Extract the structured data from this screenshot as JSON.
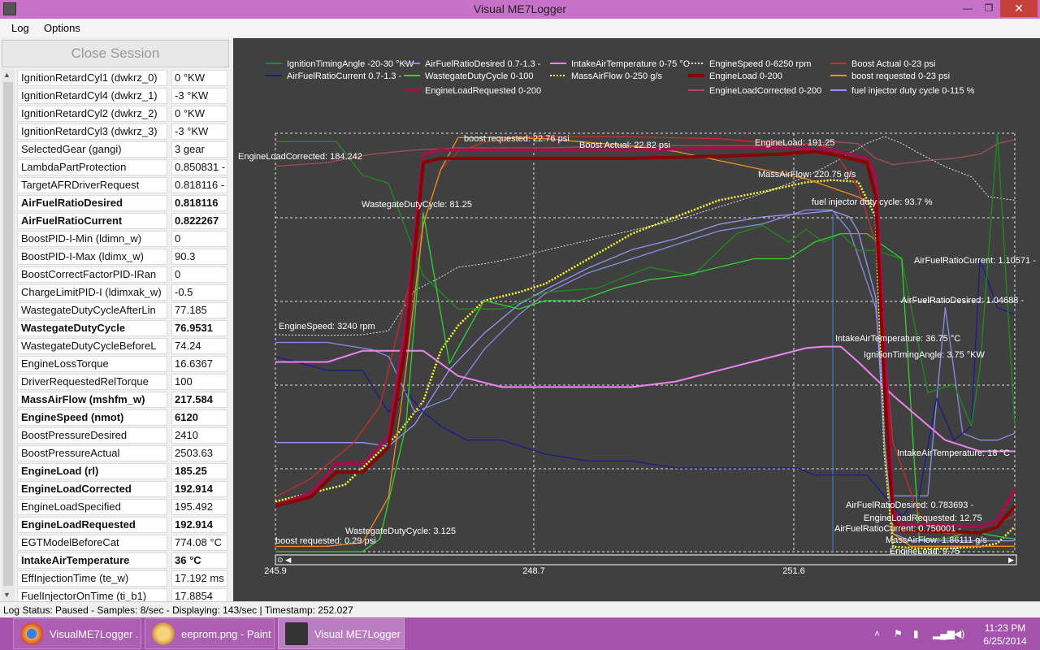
{
  "window": {
    "title": "Visual ME7Logger",
    "min": "—",
    "max": "❐",
    "close": "✕"
  },
  "menu": [
    "Log",
    "Options"
  ],
  "left_panel": {
    "close_session_label": "Close Session",
    "rows": [
      {
        "name": "IgnitionRetardCyl1 (dwkrz_0)",
        "value": "0 °KW",
        "bold": false
      },
      {
        "name": "IgnitionRetardCyl4 (dwkrz_1)",
        "value": "-3 °KW",
        "bold": false
      },
      {
        "name": "IgnitionRetardCyl2 (dwkrz_2)",
        "value": "0 °KW",
        "bold": false
      },
      {
        "name": "IgnitionRetardCyl3 (dwkrz_3)",
        "value": "-3 °KW",
        "bold": false
      },
      {
        "name": "SelectedGear (gangi)",
        "value": "3 gear",
        "bold": false
      },
      {
        "name": "LambdaPartProtection",
        "value": "0.850831 -",
        "bold": false
      },
      {
        "name": "TargetAFRDriverRequest",
        "value": "0.818116 -",
        "bold": false
      },
      {
        "name": "AirFuelRatioDesired",
        "value": "0.818116",
        "bold": true
      },
      {
        "name": "AirFuelRatioCurrent",
        "value": "0.822267",
        "bold": true
      },
      {
        "name": "BoostPID-I-Min (ldimn_w)",
        "value": "0",
        "bold": false
      },
      {
        "name": "BoostPID-I-Max (ldimx_w)",
        "value": "90.3",
        "bold": false
      },
      {
        "name": "BoostCorrectFactorPID-IRan",
        "value": "0",
        "bold": false
      },
      {
        "name": "ChargeLimitPID-I (ldimxak_w)",
        "value": "-0.5",
        "bold": false
      },
      {
        "name": "WastegateDutyCycleAfterLin",
        "value": "77.185",
        "bold": false
      },
      {
        "name": "WastegateDutyCycle",
        "value": "76.9531",
        "bold": true
      },
      {
        "name": "WastegateDutyCycleBeforeL",
        "value": "74.24",
        "bold": false
      },
      {
        "name": "EngineLossTorque",
        "value": "16.6367",
        "bold": false
      },
      {
        "name": "DriverRequestedRelTorque",
        "value": "100",
        "bold": false
      },
      {
        "name": "MassAirFlow (mshfm_w)",
        "value": "217.584",
        "bold": true
      },
      {
        "name": "EngineSpeed (nmot)",
        "value": "6120",
        "bold": true
      },
      {
        "name": "BoostPressureDesired",
        "value": "2410",
        "bold": false
      },
      {
        "name": "BoostPressureActual",
        "value": "2503.63",
        "bold": false
      },
      {
        "name": "EngineLoad (rl)",
        "value": "185.25",
        "bold": true
      },
      {
        "name": "EngineLoadCorrected",
        "value": "192.914",
        "bold": true
      },
      {
        "name": "EngineLoadSpecified",
        "value": "195.492",
        "bold": false
      },
      {
        "name": "EngineLoadRequested",
        "value": "192.914",
        "bold": true
      },
      {
        "name": "EGTModelBeforeCat",
        "value": "774.08 °C",
        "bold": false
      },
      {
        "name": "IntakeAirTemperature",
        "value": "36 °C",
        "bold": true
      },
      {
        "name": "EffInjectionTime (te_w)",
        "value": "17.192 ms",
        "bold": false
      },
      {
        "name": "FuelInjectorOnTime (ti_b1)",
        "value": "17.8854",
        "bold": false
      }
    ]
  },
  "legend": [
    {
      "label": "IgnitionTimingAngle -20-30 °KW",
      "color": "#1e8c1e",
      "style": "solid"
    },
    {
      "label": "AirFuelRatioCurrent 0.7-1.3 -",
      "color": "#1a1a8c",
      "style": "solid"
    },
    {
      "label": "AirFuelRatioDesired 0.7-1.3 -",
      "color": "#8c8ce6",
      "style": "solid"
    },
    {
      "label": "WastegateDutyCycle 0-100",
      "color": "#32d232",
      "style": "solid"
    },
    {
      "label": "EngineLoadRequested 0-200",
      "color": "#a0104a",
      "style": "thick"
    },
    {
      "label": "IntakeAirTemperature 0-75 °C",
      "color": "#ee82ee",
      "style": "solid"
    },
    {
      "label": "MassAirFlow 0-250 g/s",
      "color": "#ffff32",
      "style": "dotted"
    },
    {
      "label": "EngineSpeed 0-6250 rpm",
      "color": "#e6e6e6",
      "style": "dotted"
    },
    {
      "label": "EngineLoad 0-200",
      "color": "#8b0000",
      "style": "thick"
    },
    {
      "label": "EngineLoadCorrected 0-200",
      "color": "#a05050",
      "style": "solid"
    },
    {
      "label": "Boost Actual 0-23 psi",
      "color": "#d22828",
      "style": "solid"
    },
    {
      "label": "boost requested 0-23 psi",
      "color": "#f08c1e",
      "style": "solid"
    },
    {
      "label": "fuel injector duty cycle 0-115 %",
      "color": "#9696f0",
      "style": "solid"
    }
  ],
  "chart_data": {
    "type": "line",
    "x_ticks": [
      "245.9",
      "248.7",
      "251.6"
    ],
    "xlim": [
      245.9,
      254.4
    ],
    "grid": true,
    "series": [
      {
        "name": "IgnitionTimingAngle",
        "color": "#1e8c1e",
        "x": [
          245.9,
          246.6,
          246.9,
          247.2,
          247.6,
          248.0,
          248.5,
          249.0,
          249.6,
          250.2,
          250.7,
          251.2,
          251.5,
          251.8,
          252.0,
          252.2,
          252.4,
          252.6,
          252.8,
          253.1,
          253.4,
          253.7,
          253.9,
          254.0,
          254.2,
          254.4
        ],
        "y": [
          29,
          29,
          25,
          24,
          13,
          9,
          9,
          11,
          11.5,
          14,
          13,
          18,
          19,
          17,
          18.5,
          17,
          18,
          16,
          16,
          15,
          -1,
          0,
          -5,
          2,
          30,
          -5
        ]
      },
      {
        "name": "AirFuelRatioCurrent",
        "color": "#1a1a8c",
        "x": [
          245.9,
          246.5,
          246.9,
          247.2,
          247.4,
          247.6,
          247.8,
          248.1,
          248.5,
          249.0,
          249.5,
          250.0,
          250.5,
          251.0,
          251.5,
          251.9,
          252.1,
          252.3,
          252.5,
          252.7,
          252.9,
          253.1,
          253.3,
          253.5,
          253.7,
          253.9,
          254.0,
          254.2,
          254.4
        ],
        "y": [
          0.98,
          0.96,
          0.96,
          0.9,
          0.93,
          0.9,
          0.88,
          0.86,
          0.86,
          0.84,
          0.83,
          0.83,
          0.82,
          0.82,
          0.82,
          0.82,
          0.81,
          0.81,
          0.81,
          0.81,
          0.78,
          0.75,
          0.78,
          0.92,
          0.86,
          0.88,
          1.12,
          1.05,
          1.04
        ]
      },
      {
        "name": "AirFuelRatioDesired",
        "color": "#8c8ce6",
        "x": [
          245.9,
          246.5,
          247.0,
          247.2,
          247.5,
          247.9,
          248.3,
          248.7,
          249.0,
          249.5,
          250.0,
          250.5,
          251.0,
          251.5,
          252.0,
          252.3,
          252.5,
          252.8,
          253.0,
          253.2,
          253.4,
          253.6,
          253.8,
          254.0,
          254.2,
          254.4
        ],
        "y": [
          1.0,
          1.0,
          0.99,
          0.98,
          0.9,
          0.92,
          0.99,
          1.04,
          1.07,
          1.1,
          1.12,
          1.14,
          1.16,
          1.17,
          1.19,
          1.19,
          1.16,
          1.05,
          0.78,
          0.78,
          0.78,
          1.05,
          0.87,
          0.86,
          0.86,
          0.87
        ]
      },
      {
        "name": "WastegateDutyCycle",
        "color": "#32d232",
        "x": [
          245.9,
          246.5,
          246.9,
          247.1,
          247.4,
          247.6,
          247.9,
          248.3,
          248.7,
          249.0,
          249.4,
          249.8,
          250.2,
          250.6,
          251.0,
          251.4,
          251.8,
          252.1,
          252.4,
          252.7,
          252.9,
          253.1,
          253.3,
          253.6,
          253.9,
          254.1,
          254.4
        ],
        "y": [
          0,
          0,
          0,
          3,
          30,
          81,
          45,
          60,
          58,
          60,
          60,
          63,
          65,
          66,
          68,
          70,
          70,
          74,
          76,
          76,
          73,
          70,
          3,
          3,
          5,
          4,
          3
        ]
      },
      {
        "name": "EngineLoadRequested",
        "color": "#a0104a",
        "x": [
          245.9,
          246.3,
          246.6,
          246.9,
          247.2,
          247.4,
          247.6,
          247.8,
          248.0,
          248.5,
          249.0,
          250.0,
          251.0,
          251.7,
          252.1,
          252.3,
          252.5,
          252.7,
          252.8,
          252.9,
          253.0,
          253.1,
          253.6,
          254.0,
          254.2,
          254.4
        ],
        "y": [
          22,
          28,
          42,
          42,
          55,
          110,
          190,
          192,
          192,
          192,
          192,
          192,
          193,
          193,
          192,
          192,
          190,
          188,
          180,
          100,
          20,
          13,
          12.75,
          12,
          15,
          30
        ]
      },
      {
        "name": "IntakeAirTemperature",
        "color": "#ee82ee",
        "x": [
          245.9,
          246.5,
          246.9,
          247.3,
          247.6,
          248.0,
          248.5,
          249.0,
          249.5,
          250.0,
          250.5,
          251.0,
          251.5,
          252.0,
          252.2,
          252.4,
          252.6,
          252.8,
          253.0,
          253.3,
          253.6,
          254.0,
          254.4
        ],
        "y": [
          34,
          34,
          36,
          36,
          36,
          31.5,
          29.5,
          29.5,
          29.5,
          29.5,
          30.5,
          32.5,
          34.5,
          36.5,
          36.75,
          36.75,
          34,
          31,
          28,
          24,
          20,
          18,
          18
        ]
      },
      {
        "name": "MassAirFlow",
        "color": "#ffff32",
        "x": [
          245.9,
          246.3,
          246.7,
          247.0,
          247.3,
          247.6,
          247.8,
          248.0,
          248.3,
          248.7,
          249.0,
          249.5,
          250.0,
          250.5,
          251.0,
          251.5,
          252.0,
          252.3,
          252.6,
          252.8,
          252.9,
          253.0,
          253.3,
          253.6,
          254.0,
          254.2,
          254.4
        ],
        "y": [
          30,
          35,
          40,
          55,
          70,
          90,
          120,
          135,
          150,
          155,
          160,
          175,
          190,
          200,
          210,
          215,
          220.75,
          222,
          221,
          200,
          60,
          3,
          2,
          1.86,
          3,
          5,
          15
        ]
      },
      {
        "name": "EngineSpeed",
        "color": "#e6e6e6",
        "x": [
          245.9,
          246.5,
          246.9,
          247.2,
          247.5,
          247.8,
          248.0,
          248.3,
          248.7,
          249.0,
          249.5,
          250.0,
          250.5,
          251.0,
          251.5,
          252.0,
          252.3,
          252.5,
          252.7,
          252.9,
          253.1,
          253.3,
          253.6,
          253.9,
          254.1,
          254.4
        ],
        "y": [
          3240,
          3230,
          3240,
          3300,
          3900,
          4100,
          4250,
          4300,
          4400,
          4500,
          4650,
          4800,
          4950,
          5150,
          5350,
          5600,
          5800,
          5950,
          6100,
          6200,
          6100,
          5950,
          5750,
          5600,
          5300,
          5250
        ]
      },
      {
        "name": "EngineLoad",
        "color": "#8b0000",
        "x": [
          245.9,
          246.3,
          246.6,
          246.9,
          247.2,
          247.4,
          247.6,
          247.8,
          248.0,
          248.5,
          249.0,
          250.0,
          251.0,
          251.7,
          252.1,
          252.3,
          252.5,
          252.7,
          252.8,
          252.9,
          253.0,
          253.1,
          253.6,
          254.0,
          254.2,
          254.4
        ],
        "y": [
          22,
          26,
          38,
          38,
          50,
          100,
          186,
          188,
          188,
          188,
          188,
          188,
          189,
          190,
          191.25,
          190,
          188,
          186,
          170,
          80,
          15,
          10,
          9.75,
          9,
          12,
          22
        ]
      },
      {
        "name": "EngineLoadCorrected",
        "color": "#a05050",
        "x": [
          245.9,
          246.5,
          247.0,
          247.5,
          248.0,
          249.0,
          250.0,
          251.0,
          251.5,
          252.0,
          252.3,
          252.6,
          252.8,
          253.0,
          253.2,
          253.4,
          253.7,
          254.0,
          254.2,
          254.4
        ],
        "y": [
          184.24,
          186,
          190,
          192,
          193,
          193,
          194,
          194,
          194,
          195,
          196,
          195,
          188,
          185,
          186,
          187,
          188,
          190,
          195,
          197
        ]
      },
      {
        "name": "Boost Actual",
        "color": "#d22828",
        "x": [
          245.9,
          246.3,
          246.8,
          247.1,
          247.4,
          247.6,
          247.8,
          248.0,
          248.3,
          248.7,
          249.0,
          250.0,
          251.0,
          251.5,
          252.0,
          252.3,
          252.6,
          252.8,
          253.0,
          253.3,
          253.6,
          254.0,
          254.4
        ],
        "y": [
          3,
          4,
          6,
          8,
          14,
          18,
          21,
          22,
          22.5,
          22.8,
          22.82,
          22.8,
          22.7,
          22.5,
          22.4,
          22.2,
          20,
          17,
          6,
          2,
          1,
          1,
          2
        ]
      },
      {
        "name": "boost requested",
        "color": "#f08c1e",
        "x": [
          245.9,
          246.5,
          246.9,
          247.2,
          247.4,
          247.6,
          247.8,
          248.0,
          248.5,
          249.0,
          249.5,
          250.0,
          250.5,
          251.0,
          251.5,
          252.0,
          252.3,
          252.6,
          252.8,
          252.9,
          253.0,
          253.2,
          253.6,
          254.0,
          254.4
        ],
        "y": [
          0.29,
          0.3,
          0.5,
          3,
          10,
          18,
          21,
          22.76,
          22.76,
          22.7,
          22.5,
          22.3,
          22,
          21.5,
          21,
          20.5,
          20,
          19.5,
          19,
          12,
          1,
          0.3,
          0.3,
          0.3,
          0.3
        ]
      },
      {
        "name": "fuel injector duty cycle",
        "color": "#9696f0",
        "x": [
          245.9,
          246.5,
          246.9,
          247.2,
          247.5,
          247.9,
          248.3,
          248.7,
          249.0,
          249.5,
          250.0,
          250.5,
          251.0,
          251.5,
          252.0,
          252.3,
          252.5,
          252.6,
          252.8,
          252.9,
          253.0,
          253.2,
          253.5,
          254.0,
          254.4
        ],
        "y": [
          30,
          30,
          30,
          29,
          35,
          50,
          60,
          68,
          72,
          78,
          83,
          86,
          90,
          92,
          93,
          93.7,
          92,
          88,
          70,
          30,
          5,
          3,
          3,
          3,
          3
        ]
      }
    ],
    "annotations": [
      {
        "text": "EngineLoadCorrected: 184.242"
      },
      {
        "text": "boost requested: 22.76 psi"
      },
      {
        "text": "Boost Actual: 22.82 psi"
      },
      {
        "text": "EngineLoad: 191.25"
      },
      {
        "text": "MassAirFlow: 220.75 g/s"
      },
      {
        "text": "WastegateDutyCycle: 81.25"
      },
      {
        "text": "fuel injector duty cycle: 93.7 %"
      },
      {
        "text": "AirFuelRatioCurrent: 1.10571 -"
      },
      {
        "text": "AirFuelRatioDesired: 1.04688 -"
      },
      {
        "text": "EngineSpeed: 3240 rpm"
      },
      {
        "text": "IntakeAirTemperature: 36.75 °C"
      },
      {
        "text": "IgnitionTimingAngle: 3.75 °KW"
      },
      {
        "text": "IntakeAirTemperature: 18 °C"
      },
      {
        "text": "AirFuelRatioDesired: 0.783693 -"
      },
      {
        "text": "EngineLoadRequested: 12.75"
      },
      {
        "text": "AirFuelRatioCurrent: 0.750001 -"
      },
      {
        "text": "MassAirFlow: 1.86111 g/s"
      },
      {
        "text": "EngineLoad: 9.75"
      },
      {
        "text": "WastegateDutyCycle: 3.125"
      },
      {
        "text": "boost requested: 0.29 psi"
      }
    ]
  },
  "status": "Log Status: Paused - Samples: 8/sec - Displaying: 143/sec  |  Timestamp: 252.027",
  "taskbar": {
    "items": [
      {
        "label": "VisualME7Logger ...",
        "icon": "chrome-icon",
        "color": "#e8b33a"
      },
      {
        "label": "eeprom.png - Paint",
        "icon": "paint-icon",
        "color": "#f0c060"
      },
      {
        "label": "Visual ME7Logger",
        "icon": "app-icon",
        "color": "#444444"
      }
    ],
    "time": "11:23 PM",
    "date": "6/25/2014"
  }
}
